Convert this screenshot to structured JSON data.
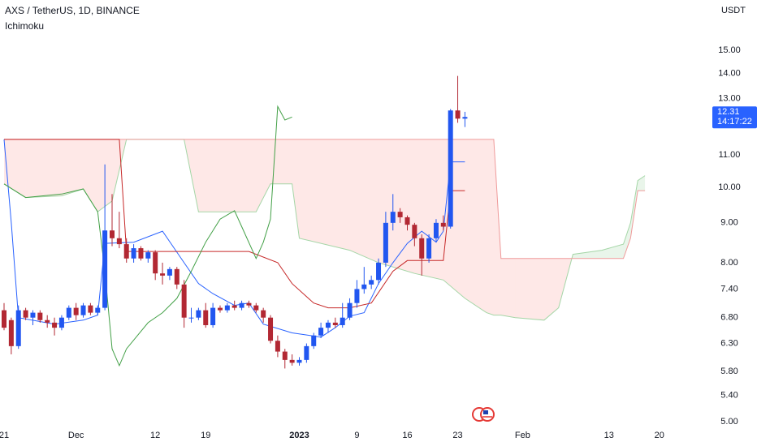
{
  "chart_data": {
    "type": "candlestick",
    "title": "AXS / TetherUS, 1D, BINANCE",
    "indicator": "Ichimoku",
    "y_unit": "USDT",
    "countdown": "14:17:22",
    "log_scale": true,
    "grid": false,
    "up_color": "#2156f0",
    "down_color": "#b22833",
    "label_color": "#2962ff",
    "xlim": [
      "2022-11-21",
      "2023-02-26"
    ],
    "ylim": [
      4.88,
      17.4
    ],
    "yticks": [
      {
        "value": 5,
        "label": "5.00"
      },
      {
        "value": 5.4,
        "label": "5.40"
      },
      {
        "value": 5.8,
        "label": "5.80"
      },
      {
        "value": 6.3,
        "label": "6.30"
      },
      {
        "value": 6.8,
        "label": "6.80"
      },
      {
        "value": 7.4,
        "label": "7.40"
      },
      {
        "value": 8,
        "label": "8.00"
      },
      {
        "value": 9,
        "label": "9.00"
      },
      {
        "value": 10,
        "label": "10.00"
      },
      {
        "value": 11,
        "label": "11.00"
      },
      {
        "value": 13,
        "label": "13.00"
      },
      {
        "value": 14,
        "label": "14.00"
      },
      {
        "value": 15,
        "label": "15.00"
      }
    ],
    "xticks": [
      {
        "value": "2022-11-21",
        "label": "21"
      },
      {
        "value": "2022-12-01",
        "label": "Dec"
      },
      {
        "value": "2022-12-12",
        "label": "12"
      },
      {
        "value": "2022-12-19",
        "label": "19"
      },
      {
        "value": "2023-01-01",
        "label": "2023"
      },
      {
        "value": "2023-01-09",
        "label": "9"
      },
      {
        "value": "2023-01-16",
        "label": "16"
      },
      {
        "value": "2023-01-23",
        "label": "23"
      },
      {
        "value": "2023-02-01",
        "label": "Feb"
      },
      {
        "value": "2023-02-13",
        "label": "13"
      },
      {
        "value": "2023-02-20",
        "label": "20"
      }
    ],
    "x": [
      "2022-11-21",
      "2022-11-22",
      "2022-11-23",
      "2022-11-24",
      "2022-11-25",
      "2022-11-26",
      "2022-11-27",
      "2022-11-28",
      "2022-11-29",
      "2022-11-30",
      "2022-12-01",
      "2022-12-02",
      "2022-12-03",
      "2022-12-04",
      "2022-12-05",
      "2022-12-06",
      "2022-12-07",
      "2022-12-08",
      "2022-12-09",
      "2022-12-10",
      "2022-12-11",
      "2022-12-12",
      "2022-12-13",
      "2022-12-14",
      "2022-12-15",
      "2022-12-16",
      "2022-12-17",
      "2022-12-18",
      "2022-12-19",
      "2022-12-20",
      "2022-12-21",
      "2022-12-22",
      "2022-12-23",
      "2022-12-24",
      "2022-12-25",
      "2022-12-26",
      "2022-12-27",
      "2022-12-28",
      "2022-12-29",
      "2022-12-30",
      "2022-12-31",
      "2023-01-01",
      "2023-01-02",
      "2023-01-03",
      "2023-01-04",
      "2023-01-05",
      "2023-01-06",
      "2023-01-07",
      "2023-01-08",
      "2023-01-09",
      "2023-01-10",
      "2023-01-11",
      "2023-01-12",
      "2023-01-13",
      "2023-01-14",
      "2023-01-15",
      "2023-01-16",
      "2023-01-17",
      "2023-01-18",
      "2023-01-19",
      "2023-01-20",
      "2023-01-21",
      "2023-01-22",
      "2023-01-23",
      "2023-01-24"
    ],
    "open": [
      6.95,
      6.75,
      6.25,
      6.95,
      6.8,
      6.9,
      6.75,
      6.7,
      6.6,
      6.8,
      7.0,
      6.85,
      7.05,
      6.9,
      7.0,
      8.8,
      8.6,
      8.45,
      8.1,
      8.35,
      8.1,
      8.25,
      7.75,
      7.7,
      7.85,
      7.5,
      6.8,
      6.8,
      6.95,
      6.65,
      7.0,
      6.95,
      7.05,
      7.0,
      7.1,
      7.05,
      6.95,
      6.8,
      6.35,
      6.15,
      6.0,
      5.95,
      6.0,
      6.25,
      6.45,
      6.6,
      6.7,
      6.65,
      6.8,
      7.1,
      7.4,
      7.5,
      7.6,
      8.0,
      9.0,
      9.3,
      9.15,
      8.95,
      8.6,
      8.1,
      8.6,
      9.0,
      8.9,
      12.55,
      12.25
    ],
    "high": [
      7.1,
      6.8,
      7.05,
      7.0,
      6.95,
      6.95,
      6.85,
      6.8,
      6.85,
      7.05,
      7.1,
      7.1,
      7.1,
      7.05,
      10.7,
      9.8,
      9.3,
      8.6,
      8.45,
      8.4,
      8.3,
      8.3,
      8.0,
      7.9,
      7.9,
      7.6,
      7.0,
      7.0,
      7.1,
      7.1,
      7.05,
      7.1,
      7.15,
      7.15,
      7.15,
      7.1,
      7.0,
      6.85,
      6.45,
      6.2,
      6.1,
      6.05,
      6.3,
      6.5,
      6.7,
      6.75,
      6.8,
      7.1,
      7.2,
      7.6,
      7.9,
      7.7,
      8.1,
      9.3,
      9.8,
      9.4,
      9.2,
      9.0,
      8.7,
      8.7,
      9.1,
      9.2,
      12.6,
      13.9,
      12.5
    ],
    "low": [
      6.55,
      6.1,
      6.2,
      6.75,
      6.65,
      6.7,
      6.6,
      6.45,
      6.55,
      6.75,
      6.75,
      6.8,
      6.85,
      6.85,
      6.95,
      8.4,
      8.35,
      8.0,
      8.0,
      8.05,
      8.0,
      7.6,
      7.5,
      7.6,
      7.4,
      6.6,
      6.7,
      6.75,
      6.6,
      6.6,
      6.9,
      6.9,
      6.95,
      6.95,
      7.0,
      6.9,
      6.7,
      6.3,
      6.05,
      5.85,
      5.9,
      5.9,
      5.95,
      6.2,
      6.4,
      6.5,
      6.6,
      6.6,
      6.75,
      7.0,
      7.3,
      7.4,
      7.5,
      7.9,
      8.8,
      9.0,
      8.8,
      8.4,
      7.7,
      8.0,
      8.5,
      8.8,
      8.85,
      12.1,
      11.95
    ],
    "close": [
      6.6,
      6.25,
      6.95,
      6.8,
      6.9,
      6.75,
      6.7,
      6.6,
      6.8,
      7.0,
      6.85,
      7.05,
      6.9,
      7.0,
      8.8,
      8.6,
      8.45,
      8.1,
      8.35,
      8.1,
      8.25,
      7.75,
      7.7,
      7.85,
      7.5,
      6.8,
      6.8,
      6.95,
      6.65,
      7.0,
      6.95,
      7.05,
      7.0,
      7.1,
      7.05,
      6.95,
      6.8,
      6.35,
      6.15,
      6.0,
      5.95,
      6.0,
      6.25,
      6.45,
      6.6,
      6.7,
      6.65,
      6.8,
      7.1,
      7.4,
      7.5,
      7.6,
      8.0,
      9.0,
      9.3,
      9.15,
      8.95,
      8.6,
      8.1,
      8.6,
      9.0,
      8.9,
      12.55,
      12.25,
      12.31
    ],
    "lines": [
      {
        "color": "#2962ff",
        "x": [
          "2022-11-21",
          "2022-11-22",
          "2022-11-23",
          "2022-11-28",
          "2022-12-02",
          "2022-12-04",
          "2022-12-05",
          "2022-12-09",
          "2022-12-13",
          "2022-12-16",
          "2022-12-18",
          "2022-12-20",
          "2022-12-23",
          "2022-12-25",
          "2022-12-27",
          "2022-12-31",
          "2023-01-04",
          "2023-01-06",
          "2023-01-08",
          "2023-01-10",
          "2023-01-12",
          "2023-01-14",
          "2023-01-16",
          "2023-01-18",
          "2023-01-20",
          "2023-01-21",
          "2023-01-22",
          "2023-01-24"
        ],
        "values": [
          11.52,
          9.0,
          6.8,
          6.67,
          6.75,
          6.85,
          8.47,
          8.5,
          8.78,
          8.0,
          7.52,
          7.3,
          7.05,
          7.1,
          6.67,
          6.5,
          6.42,
          6.6,
          6.83,
          6.9,
          7.52,
          8.0,
          8.47,
          8.78,
          8.5,
          8.78,
          10.78,
          10.78
        ]
      },
      {
        "color": "#c62828",
        "x": [
          "2022-11-21",
          "2022-12-07",
          "2022-12-08",
          "2022-12-25",
          "2022-12-29",
          "2022-12-31",
          "2023-01-03",
          "2023-01-05",
          "2023-01-08",
          "2023-01-11",
          "2023-01-14",
          "2023-01-16",
          "2023-01-21",
          "2023-01-22",
          "2023-01-24"
        ],
        "values": [
          11.52,
          11.52,
          8.27,
          8.27,
          8.0,
          7.52,
          7.1,
          7.0,
          7.0,
          7.1,
          7.8,
          8.05,
          8.05,
          9.9,
          9.9
        ]
      },
      {
        "color": "#43a047",
        "x": [
          "2022-11-21",
          "2022-11-24",
          "2022-11-29",
          "2022-12-02",
          "2022-12-04",
          "2022-12-05",
          "2022-12-06",
          "2022-12-07",
          "2022-12-08",
          "2022-12-11",
          "2022-12-13",
          "2022-12-15",
          "2022-12-17",
          "2022-12-19",
          "2022-12-21",
          "2022-12-23",
          "2022-12-24",
          "2022-12-26",
          "2022-12-27",
          "2022-12-28",
          "2022-12-29",
          "2022-12-30",
          "2022-12-31"
        ],
        "values": [
          10.1,
          9.7,
          9.8,
          9.95,
          9.3,
          7.8,
          6.2,
          5.9,
          6.2,
          6.7,
          6.9,
          7.2,
          7.8,
          8.5,
          9.1,
          9.33,
          8.9,
          8.1,
          8.5,
          9.1,
          12.7,
          12.2,
          12.31
        ]
      }
    ],
    "cloud": {
      "up_color": "#4caf50",
      "down_color": "#f44336",
      "line_a_color": "#a5d6a7",
      "line_b_color": "#ef9a9a",
      "x": [
        "2022-11-21",
        "2022-11-24",
        "2022-11-29",
        "2022-12-02",
        "2022-12-04",
        "2022-12-06",
        "2022-12-08",
        "2022-12-10",
        "2022-12-16",
        "2022-12-18",
        "2022-12-26",
        "2022-12-28",
        "2022-12-31",
        "2023-01-01",
        "2023-01-08",
        "2023-01-12",
        "2023-01-17",
        "2023-01-21",
        "2023-01-24",
        "2023-01-27",
        "2023-01-28",
        "2023-01-29",
        "2023-01-31",
        "2023-02-04",
        "2023-02-06",
        "2023-02-08",
        "2023-02-12",
        "2023-02-15",
        "2023-02-16",
        "2023-02-17",
        "2023-02-18"
      ],
      "span_a": [
        10.1,
        9.7,
        9.75,
        9.95,
        9.3,
        9.6,
        11.52,
        11.52,
        11.52,
        9.3,
        9.3,
        10.1,
        10.1,
        8.6,
        8.3,
        8.0,
        7.75,
        7.6,
        7.2,
        6.9,
        6.85,
        6.85,
        6.8,
        6.75,
        7.0,
        8.2,
        8.3,
        8.45,
        9.0,
        10.2,
        10.35
      ],
      "span_b": [
        11.52,
        11.52,
        11.52,
        11.52,
        11.52,
        11.52,
        11.52,
        11.52,
        11.52,
        11.52,
        11.52,
        11.52,
        11.52,
        11.52,
        11.52,
        11.52,
        11.52,
        11.52,
        11.52,
        11.52,
        11.52,
        8.1,
        8.1,
        8.1,
        8.1,
        8.1,
        8.1,
        8.1,
        8.6,
        9.9,
        9.9
      ]
    }
  }
}
